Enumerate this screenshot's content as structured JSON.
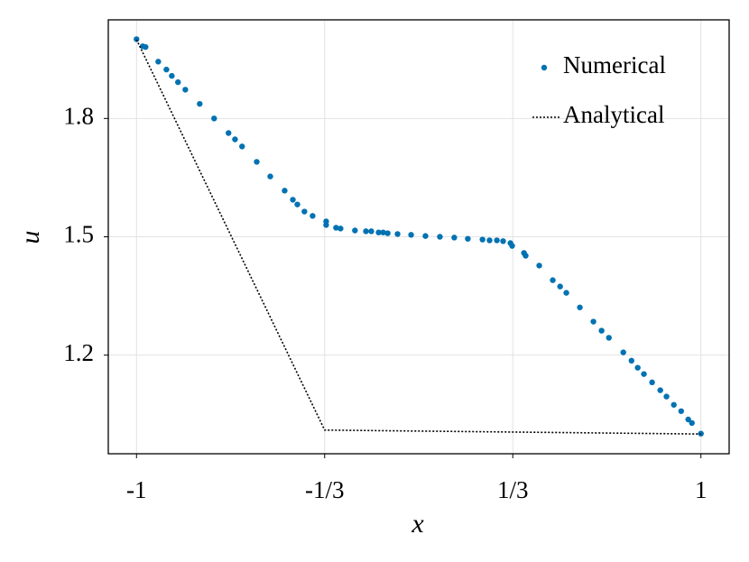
{
  "chart_data": {
    "type": "scatter",
    "xlabel": "x",
    "ylabel": "u",
    "xlim": [
      -1.1,
      1.1
    ],
    "ylim": [
      0.95,
      2.05
    ],
    "xticks": [
      -1,
      {
        "value": -0.3333,
        "label": "-1/3"
      },
      {
        "value": 0.3333,
        "label": "1/3"
      },
      1
    ],
    "yticks": [
      1.2,
      1.5,
      1.8
    ],
    "grid": true,
    "legend": "top-right",
    "series": [
      {
        "name": "Numerical",
        "type": "scatter",
        "color": "#0072b2",
        "x": [
          -1,
          -0.978,
          -0.968,
          -0.923,
          -0.894,
          -0.875,
          -0.853,
          -0.827,
          -0.776,
          -0.725,
          -0.674,
          -0.651,
          -0.626,
          -0.574,
          -0.526,
          -0.475,
          -0.446,
          -0.43,
          -0.405,
          -0.376,
          -0.328,
          -0.328,
          -0.293,
          -0.277,
          -0.226,
          -0.187,
          -0.168,
          -0.142,
          -0.126,
          -0.11,
          -0.075,
          -0.027,
          0.024,
          0.075,
          0.126,
          0.174,
          0.226,
          0.251,
          0.277,
          0.299,
          0.325,
          0.331,
          0.373,
          0.379,
          0.427,
          0.475,
          0.501,
          0.523,
          0.571,
          0.619,
          0.648,
          0.674,
          0.725,
          0.754,
          0.776,
          0.798,
          0.827,
          0.856,
          0.878,
          0.904,
          0.93,
          0.955,
          0.968,
          1
        ],
        "values": [
          2.001,
          1.983,
          1.981,
          1.944,
          1.924,
          1.908,
          1.892,
          1.873,
          1.837,
          1.8,
          1.763,
          1.747,
          1.729,
          1.69,
          1.653,
          1.617,
          1.594,
          1.582,
          1.564,
          1.553,
          1.539,
          1.53,
          1.523,
          1.521,
          1.516,
          1.514,
          1.514,
          1.511,
          1.511,
          1.509,
          1.507,
          1.505,
          1.502,
          1.5,
          1.498,
          1.495,
          1.493,
          1.491,
          1.491,
          1.489,
          1.484,
          1.477,
          1.459,
          1.452,
          1.427,
          1.39,
          1.374,
          1.358,
          1.321,
          1.285,
          1.262,
          1.244,
          1.207,
          1.186,
          1.168,
          1.152,
          1.131,
          1.111,
          1.095,
          1.074,
          1.058,
          1.037,
          1.028,
          1.001
        ]
      },
      {
        "name": "Analytical",
        "type": "line",
        "color": "#000000",
        "x": [
          -1,
          -0.3333,
          1
        ],
        "values": [
          2.0,
          1.01,
          1.0
        ]
      }
    ]
  }
}
